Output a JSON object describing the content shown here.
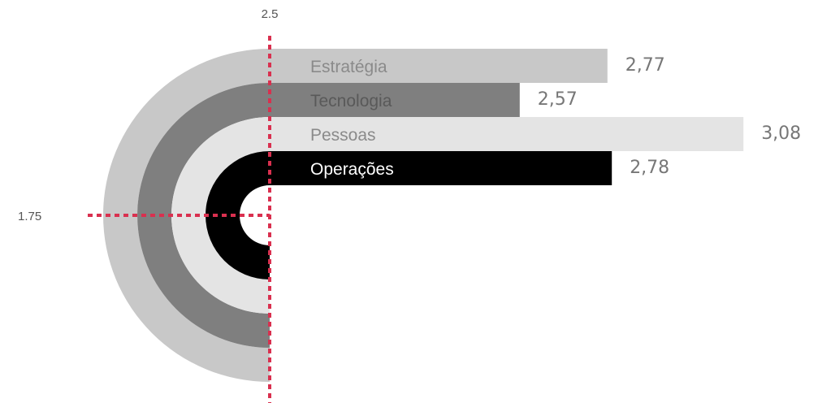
{
  "chart_data": {
    "type": "bar",
    "categories": [
      "Estratégia",
      "Tecnologia",
      "Pessoas",
      "Operações"
    ],
    "values": [
      2.77,
      2.57,
      3.08,
      2.78
    ],
    "value_labels": [
      "2,77",
      "2,57",
      "3,08",
      "2,78"
    ],
    "colors": [
      "#c8c8c8",
      "#7f7f7f",
      "#e4e4e4",
      "#000000"
    ],
    "label_colors": [
      "#8a8a8a",
      "#595959",
      "#8a8a8a",
      "#ffffff"
    ],
    "reference_lines": [
      {
        "axis": "x",
        "value": 2.5,
        "label": "2.5"
      },
      {
        "axis": "y",
        "value": 1.75,
        "label": "1.75"
      }
    ],
    "reference_color": "#d9304f",
    "x_start": 2.0,
    "grid": false,
    "legend": "none"
  }
}
